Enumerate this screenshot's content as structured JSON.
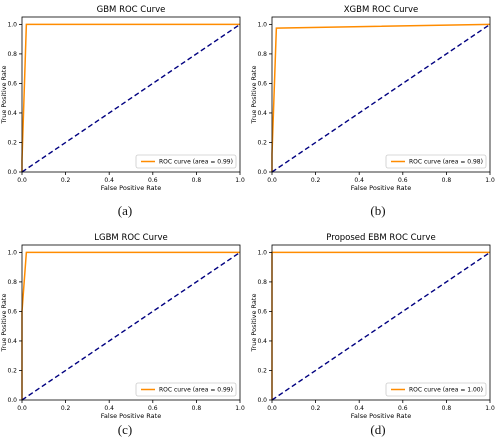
{
  "figure": {
    "captions": [
      "(a)",
      "(b)",
      "(c)",
      "(d)"
    ]
  },
  "chart_data": [
    {
      "type": "line",
      "title": "GBM ROC Curve",
      "xlabel": "False Positive Rate",
      "ylabel": "True Positive Rate",
      "xlim": [
        0.0,
        1.0
      ],
      "ylim": [
        0.0,
        1.05
      ],
      "xticks": [
        "0.0",
        "0.2",
        "0.4",
        "0.6",
        "0.8",
        "1.0"
      ],
      "yticks": [
        "0.0",
        "0.2",
        "0.4",
        "0.6",
        "0.8",
        "1.0"
      ],
      "grid": false,
      "legend_position": "lower-right",
      "series": [
        {
          "name": "ROC curve (area = 0.99)",
          "color": "#ff8c00",
          "style": "solid",
          "x": [
            0.0,
            0.0,
            0.02,
            1.0
          ],
          "y": [
            0.0,
            0.08,
            1.0,
            1.0
          ]
        },
        {
          "color": "#000080",
          "style": "dashed",
          "x": [
            0.0,
            1.0
          ],
          "y": [
            0.0,
            1.0
          ]
        }
      ]
    },
    {
      "type": "line",
      "title": "XGBM ROC Curve",
      "xlabel": "False Positive Rate",
      "ylabel": "True Positive Rate",
      "xlim": [
        0.0,
        1.0
      ],
      "ylim": [
        0.0,
        1.05
      ],
      "xticks": [
        "0.0",
        "0.2",
        "0.4",
        "0.6",
        "0.8",
        "1.0"
      ],
      "yticks": [
        "0.0",
        "0.2",
        "0.4",
        "0.6",
        "0.8",
        "1.0"
      ],
      "grid": false,
      "legend_position": "lower-right",
      "series": [
        {
          "name": "ROC curve (area = 0.98)",
          "color": "#ff8c00",
          "style": "solid",
          "x": [
            0.0,
            0.0,
            0.02,
            1.0
          ],
          "y": [
            0.0,
            0.12,
            0.975,
            1.0
          ]
        },
        {
          "color": "#000080",
          "style": "dashed",
          "x": [
            0.0,
            1.0
          ],
          "y": [
            0.0,
            1.0
          ]
        }
      ]
    },
    {
      "type": "line",
      "title": "LGBM ROC Curve",
      "xlabel": "False Positive Rate",
      "ylabel": "True Positive Rate",
      "xlim": [
        0.0,
        1.0
      ],
      "ylim": [
        0.0,
        1.05
      ],
      "xticks": [
        "0.0",
        "0.2",
        "0.4",
        "0.6",
        "0.8",
        "1.0"
      ],
      "yticks": [
        "0.0",
        "0.2",
        "0.4",
        "0.6",
        "0.8",
        "1.0"
      ],
      "grid": false,
      "legend_position": "lower-right",
      "series": [
        {
          "name": "ROC curve (area = 0.99)",
          "color": "#ff8c00",
          "style": "solid",
          "x": [
            0.0,
            0.0,
            0.02,
            1.0
          ],
          "y": [
            0.0,
            0.6,
            1.0,
            1.0
          ]
        },
        {
          "color": "#000080",
          "style": "dashed",
          "x": [
            0.0,
            1.0
          ],
          "y": [
            0.0,
            1.0
          ]
        }
      ]
    },
    {
      "type": "line",
      "title": "Proposed EBM ROC Curve",
      "xlabel": "False Positive Rate",
      "ylabel": "True Positive Rate",
      "xlim": [
        0.0,
        1.0
      ],
      "ylim": [
        0.0,
        1.05
      ],
      "xticks": [
        "0.0",
        "0.2",
        "0.4",
        "0.6",
        "0.8",
        "1.0"
      ],
      "yticks": [
        "0.0",
        "0.2",
        "0.4",
        "0.6",
        "0.8",
        "1.0"
      ],
      "grid": false,
      "legend_position": "lower-right",
      "series": [
        {
          "name": "ROC curve (area = 1.00)",
          "color": "#ff8c00",
          "style": "solid",
          "x": [
            0.0,
            0.0,
            1.0
          ],
          "y": [
            0.0,
            1.0,
            1.0
          ]
        },
        {
          "color": "#000080",
          "style": "dashed",
          "x": [
            0.0,
            1.0
          ],
          "y": [
            0.0,
            1.0
          ]
        }
      ]
    }
  ]
}
